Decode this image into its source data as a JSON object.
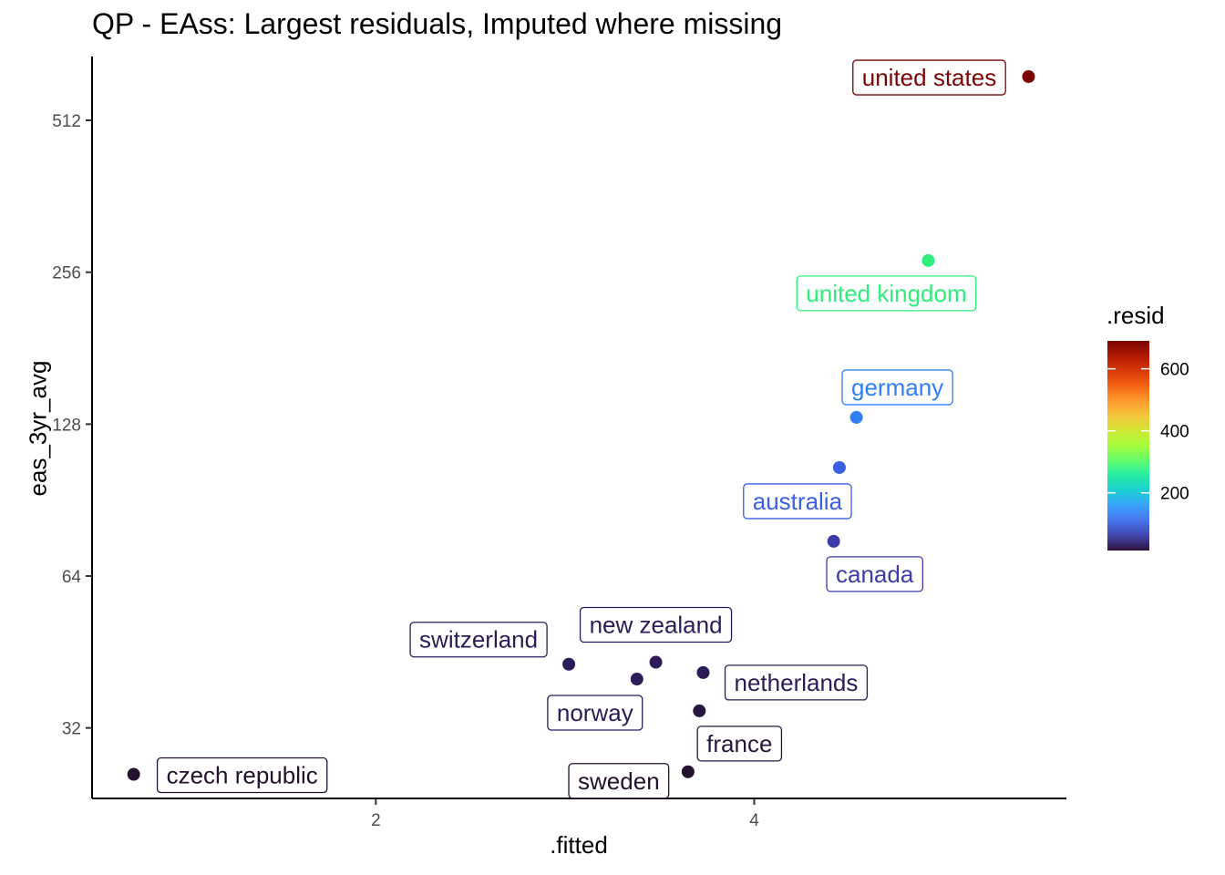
{
  "chart_data": {
    "type": "scatter",
    "title": "QP - EAss: Largest residuals, Imputed where missing",
    "xlabel": ".fitted",
    "ylabel": "eas_3yr_avg",
    "x_ticks": [
      2,
      4
    ],
    "y_ticks": [
      32,
      64,
      128,
      256,
      512
    ],
    "y_tick_labels": [
      "32",
      "64",
      "128",
      "256",
      "512"
    ],
    "y_scale": "log2",
    "xlim": [
      0.5,
      5.65
    ],
    "ylim": [
      23.2,
      685
    ],
    "grid": false,
    "color_legend": {
      "title": ".resid",
      "position": "right",
      "min": 14,
      "max": 690,
      "ticks": [
        200,
        400,
        600
      ],
      "colormap": "turbo"
    },
    "points": [
      {
        "label": "united states",
        "x": 5.45,
        "y": 625,
        "resid": 658,
        "color": "#7a0403"
      },
      {
        "label": "united kingdom",
        "x": 4.92,
        "y": 270,
        "resid": 232,
        "color": "#2fef7c"
      },
      {
        "label": "germany",
        "x": 4.54,
        "y": 132,
        "resid": 110,
        "color": "#2f7ff7"
      },
      {
        "label": "australia",
        "x": 4.45,
        "y": 105,
        "resid": 88,
        "color": "#3a5ee4"
      },
      {
        "label": "canada",
        "x": 4.42,
        "y": 75,
        "resid": 60,
        "color": "#3d3ba8"
      },
      {
        "label": "new zealand",
        "x": 3.48,
        "y": 43.2,
        "resid": 26,
        "color": "#2c1b59"
      },
      {
        "label": "switzerland",
        "x": 3.02,
        "y": 42.8,
        "resid": 26,
        "color": "#2c1b59"
      },
      {
        "label": "netherlands",
        "x": 3.73,
        "y": 41.2,
        "resid": 26,
        "color": "#2c1b59"
      },
      {
        "label": "norway",
        "x": 3.38,
        "y": 40.0,
        "resid": 24,
        "color": "#2c1b59"
      },
      {
        "label": "france",
        "x": 3.71,
        "y": 34.6,
        "resid": 20,
        "color": "#271640"
      },
      {
        "label": "sweden",
        "x": 3.65,
        "y": 26.2,
        "resid": 14,
        "color": "#24112e"
      },
      {
        "label": "czech republic",
        "x": 0.72,
        "y": 25.9,
        "resid": 14,
        "color": "#24112e"
      }
    ]
  }
}
